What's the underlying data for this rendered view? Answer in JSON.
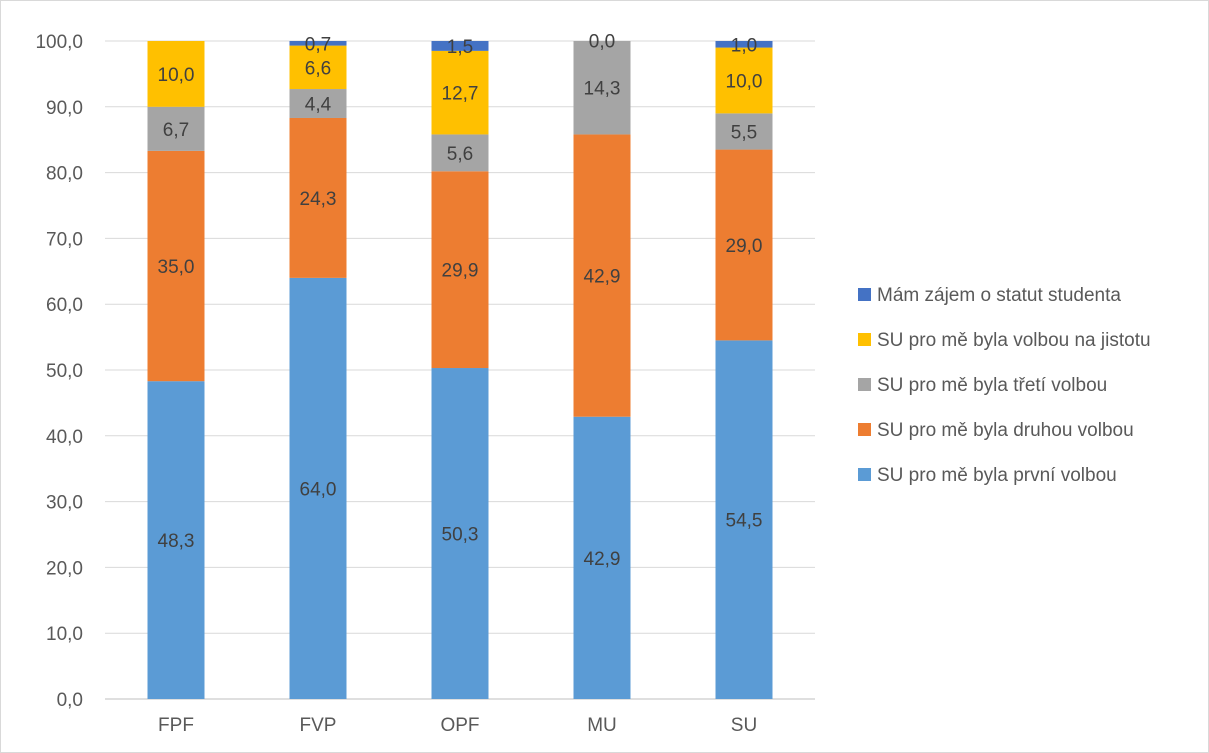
{
  "chart_data": {
    "type": "bar",
    "stacked": true,
    "categories": [
      "FPF",
      "FVP",
      "OPF",
      "MU",
      "SU"
    ],
    "series": [
      {
        "name": "SU pro mě byla první volbou",
        "color": "#5b9bd5",
        "values": [
          48.3,
          64.0,
          50.3,
          42.9,
          54.5
        ],
        "labels": [
          "48,3",
          "64,0",
          "50,3",
          "42,9",
          "54,5"
        ]
      },
      {
        "name": "SU pro mě byla druhou volbou",
        "color": "#ed7d31",
        "values": [
          35.0,
          24.3,
          29.9,
          42.9,
          29.0
        ],
        "labels": [
          "35,0",
          "24,3",
          "29,9",
          "42,9",
          "29,0"
        ]
      },
      {
        "name": "SU pro mě byla třetí volbou",
        "color": "#a5a5a5",
        "values": [
          6.7,
          4.4,
          5.6,
          14.3,
          5.5
        ],
        "labels": [
          "6,7",
          "4,4",
          "5,6",
          "14,3",
          "5,5"
        ]
      },
      {
        "name": "SU pro mě byla volbou na jistotu",
        "color": "#ffc000",
        "values": [
          10.0,
          6.6,
          12.7,
          0.0,
          10.0
        ],
        "labels": [
          "10,0",
          "6,6",
          "12,7",
          "",
          "10,0"
        ]
      },
      {
        "name": "Mám zájem o statut studenta",
        "color": "#4472c4",
        "values": [
          0.0,
          0.7,
          1.5,
          0.0,
          1.0
        ],
        "labels": [
          "",
          "0,7",
          "1,5",
          "0,0",
          "1,0"
        ]
      }
    ],
    "ylim": [
      0,
      100
    ],
    "yticks": [
      "0,0",
      "10,0",
      "20,0",
      "30,0",
      "40,0",
      "50,0",
      "60,0",
      "70,0",
      "80,0",
      "90,0",
      "100,0"
    ],
    "grid": true,
    "legend_position": "right",
    "title": "",
    "xlabel": "",
    "ylabel": ""
  }
}
